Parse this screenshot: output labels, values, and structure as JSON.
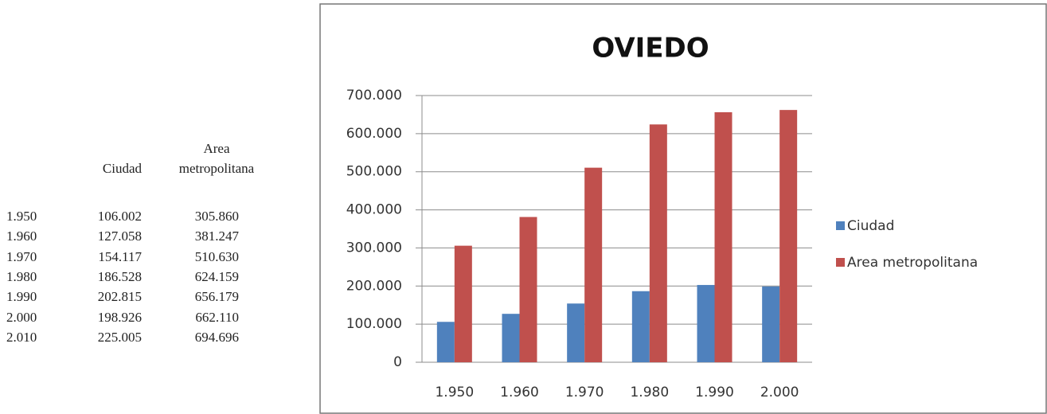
{
  "table": {
    "headers": [
      "Ciudad",
      "Area metropolitana"
    ],
    "rows": [
      [
        "1.950",
        "106.002",
        "305.860"
      ],
      [
        "1.960",
        "127.058",
        "381.247"
      ],
      [
        "1.970",
        "154.117",
        "510.630"
      ],
      [
        "1.980",
        "186.528",
        "624.159"
      ],
      [
        "1.990",
        "202.815",
        "656.179"
      ],
      [
        "2.000",
        "198.926",
        "662.110"
      ],
      [
        "2.010",
        "225.005",
        "694.696"
      ]
    ]
  },
  "chart_data": {
    "type": "bar",
    "title": "OVIEDO",
    "categories": [
      "1.950",
      "1.960",
      "1.970",
      "1.980",
      "1.990",
      "2.000"
    ],
    "series": [
      {
        "name": "Ciudad",
        "color": "#4f81bd",
        "values": [
          106002,
          127058,
          154117,
          186528,
          202815,
          198926
        ]
      },
      {
        "name": "Area metropolitana",
        "color": "#c0504d",
        "values": [
          305860,
          381247,
          510630,
          624159,
          656179,
          662110
        ]
      }
    ],
    "ylim": [
      0,
      700000
    ],
    "yticks": [
      0,
      {
        "value": 100000,
        "label": "100.000"
      },
      {
        "value": 200000,
        "label": "200.000"
      },
      {
        "value": 300000,
        "label": "300.000"
      },
      {
        "value": 400000,
        "label": "400.000"
      },
      {
        "value": 500000,
        "label": "500.000"
      },
      {
        "value": 600000,
        "label": "600.000"
      },
      {
        "value": 700000,
        "label": "700.000"
      }
    ],
    "grid": true,
    "legend": "right"
  }
}
